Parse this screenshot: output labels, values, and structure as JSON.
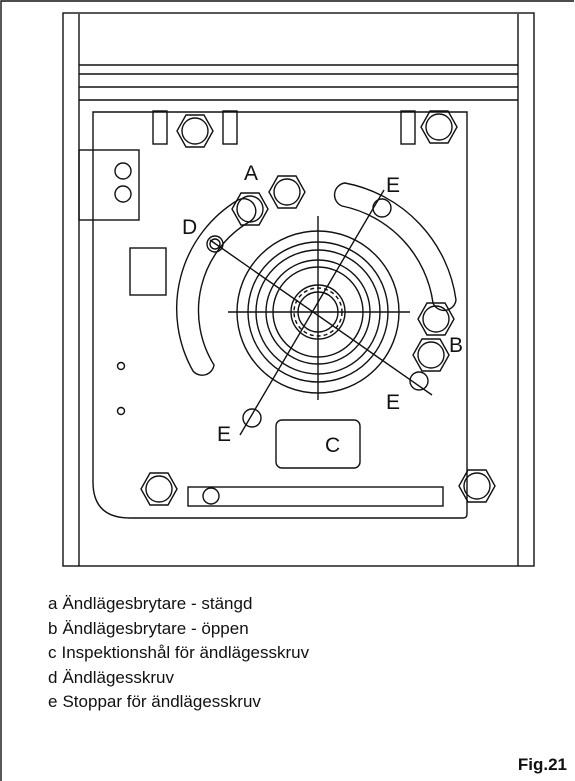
{
  "diagram": {
    "labels": {
      "A": "A",
      "B": "B",
      "C": "C",
      "D": "D",
      "E": "E"
    }
  },
  "legend": [
    {
      "key": "a",
      "text": "Ändlägesbrytare - stängd"
    },
    {
      "key": "b",
      "text": "Ändlägesbrytare - öppen"
    },
    {
      "key": "c",
      "text": "Inspektionshål för ändlägesskruv"
    },
    {
      "key": "d",
      "text": "Ändlägesskruv"
    },
    {
      "key": "e",
      "text": "Stoppar för ändlägesskruv"
    }
  ],
  "figure_label": "Fig.21"
}
